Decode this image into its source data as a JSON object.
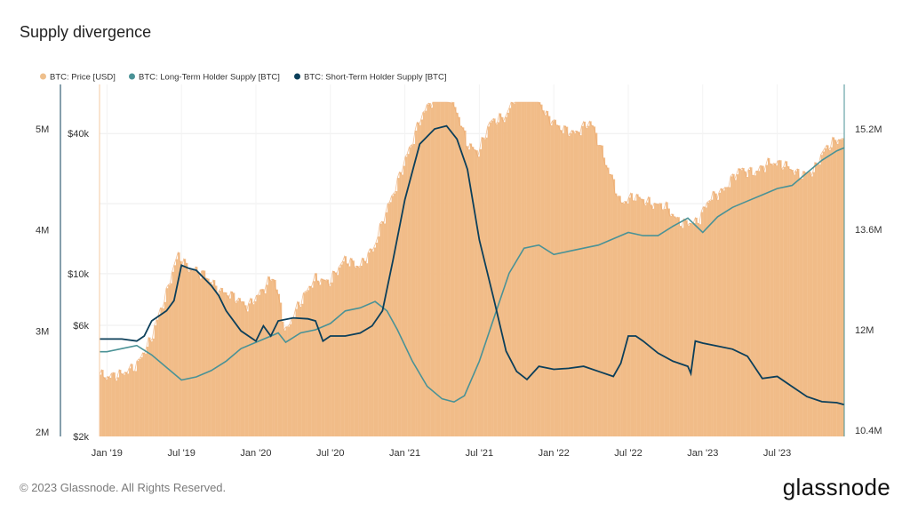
{
  "title": "Supply divergence",
  "footer": "© 2023 Glassnode. All Rights Reserved.",
  "logo": "glassnode",
  "colors": {
    "price": "#eba76c",
    "price_fill": "#f1bc88",
    "lth": "#4a9296",
    "sth": "#0c3f5a",
    "grid": "#eeeeee"
  },
  "chart_data": {
    "type": "line",
    "legend": [
      {
        "label": "BTC: Price [USD]",
        "color": "#eebf8c"
      },
      {
        "label": "BTC: Long-Term Holder Supply [BTC]",
        "color": "#4a9296"
      },
      {
        "label": "BTC: Short-Term Holder Supply [BTC]",
        "color": "#0c3f5a"
      }
    ],
    "x_ticks": [
      "Jan '19",
      "Jul '19",
      "Jan '20",
      "Jul '20",
      "Jan '21",
      "Jul '21",
      "Jan '22",
      "Jul '22",
      "Jan '23",
      "Jul '23"
    ],
    "x_tick_t": [
      2019.0,
      2019.5,
      2020.0,
      2020.5,
      2021.0,
      2021.5,
      2022.0,
      2022.5,
      2023.0,
      2023.5
    ],
    "x_range": [
      2018.95,
      2023.95
    ],
    "left_axis_sth": {
      "ticks": [
        "2M",
        "3M",
        "4M",
        "5M"
      ],
      "values": [
        2000000,
        3000000,
        4000000,
        5000000
      ],
      "range": [
        2000000,
        5300000
      ]
    },
    "left_axis_price": {
      "ticks": [
        "$2k",
        "$6k",
        "$10k",
        "$40k"
      ],
      "values": [
        2000,
        6000,
        10000,
        40000
      ],
      "scale": "log",
      "range": [
        2000,
        65000
      ]
    },
    "right_axis_lth": {
      "ticks": [
        "10.4M",
        "12M",
        "13.6M",
        "15.2M"
      ],
      "values": [
        10400000,
        12000000,
        13600000,
        15200000
      ],
      "range": [
        10400000,
        15300000
      ]
    },
    "series": [
      {
        "name": "BTC: Price [USD]",
        "axis": "price",
        "points": [
          [
            2018.95,
            3700
          ],
          [
            2019.0,
            3600
          ],
          [
            2019.1,
            3700
          ],
          [
            2019.2,
            4000
          ],
          [
            2019.3,
            5200
          ],
          [
            2019.4,
            8000
          ],
          [
            2019.48,
            12000
          ],
          [
            2019.55,
            10500
          ],
          [
            2019.65,
            10000
          ],
          [
            2019.75,
            8500
          ],
          [
            2019.85,
            8000
          ],
          [
            2019.95,
            7200
          ],
          [
            2020.05,
            8500
          ],
          [
            2020.12,
            9800
          ],
          [
            2020.2,
            5500
          ],
          [
            2020.3,
            7500
          ],
          [
            2020.4,
            9500
          ],
          [
            2020.5,
            9200
          ],
          [
            2020.6,
            11500
          ],
          [
            2020.7,
            10700
          ],
          [
            2020.8,
            13000
          ],
          [
            2020.88,
            18500
          ],
          [
            2020.95,
            24000
          ],
          [
            2021.05,
            36000
          ],
          [
            2021.12,
            48000
          ],
          [
            2021.2,
            57000
          ],
          [
            2021.28,
            60000
          ],
          [
            2021.35,
            50000
          ],
          [
            2021.42,
            36000
          ],
          [
            2021.5,
            33000
          ],
          [
            2021.58,
            45000
          ],
          [
            2021.68,
            47000
          ],
          [
            2021.75,
            58000
          ],
          [
            2021.85,
            64000
          ],
          [
            2021.95,
            48000
          ],
          [
            2022.05,
            42000
          ],
          [
            2022.15,
            40000
          ],
          [
            2022.25,
            45000
          ],
          [
            2022.35,
            30000
          ],
          [
            2022.45,
            20000
          ],
          [
            2022.55,
            21500
          ],
          [
            2022.65,
            20000
          ],
          [
            2022.75,
            19500
          ],
          [
            2022.85,
            16500
          ],
          [
            2022.97,
            16600
          ],
          [
            2023.05,
            21000
          ],
          [
            2023.15,
            23000
          ],
          [
            2023.25,
            28000
          ],
          [
            2023.35,
            27000
          ],
          [
            2023.45,
            30000
          ],
          [
            2023.55,
            29500
          ],
          [
            2023.65,
            26500
          ],
          [
            2023.75,
            27500
          ],
          [
            2023.82,
            34000
          ],
          [
            2023.9,
            37500
          ],
          [
            2023.95,
            38000
          ]
        ]
      },
      {
        "name": "BTC: Long-Term Holder Supply [BTC]",
        "axis": "lth",
        "points": [
          [
            2018.95,
            11650
          ],
          [
            2019.0,
            11650
          ],
          [
            2019.1,
            11700
          ],
          [
            2019.2,
            11750
          ],
          [
            2019.3,
            11600
          ],
          [
            2019.4,
            11400
          ],
          [
            2019.5,
            11200
          ],
          [
            2019.6,
            11250
          ],
          [
            2019.7,
            11350
          ],
          [
            2019.8,
            11500
          ],
          [
            2019.9,
            11700
          ],
          [
            2020.0,
            11800
          ],
          [
            2020.1,
            11900
          ],
          [
            2020.15,
            11950
          ],
          [
            2020.2,
            11800
          ],
          [
            2020.3,
            11950
          ],
          [
            2020.4,
            12000
          ],
          [
            2020.5,
            12100
          ],
          [
            2020.6,
            12300
          ],
          [
            2020.7,
            12350
          ],
          [
            2020.8,
            12450
          ],
          [
            2020.88,
            12300
          ],
          [
            2020.95,
            12000
          ],
          [
            2021.05,
            11500
          ],
          [
            2021.15,
            11100
          ],
          [
            2021.25,
            10900
          ],
          [
            2021.33,
            10850
          ],
          [
            2021.4,
            10950
          ],
          [
            2021.5,
            11500
          ],
          [
            2021.6,
            12200
          ],
          [
            2021.7,
            12900
          ],
          [
            2021.8,
            13300
          ],
          [
            2021.9,
            13350
          ],
          [
            2022.0,
            13200
          ],
          [
            2022.1,
            13250
          ],
          [
            2022.2,
            13300
          ],
          [
            2022.3,
            13350
          ],
          [
            2022.4,
            13450
          ],
          [
            2022.5,
            13550
          ],
          [
            2022.6,
            13500
          ],
          [
            2022.7,
            13500
          ],
          [
            2022.8,
            13650
          ],
          [
            2022.9,
            13780
          ],
          [
            2023.0,
            13550
          ],
          [
            2023.1,
            13800
          ],
          [
            2023.2,
            13950
          ],
          [
            2023.3,
            14050
          ],
          [
            2023.4,
            14150
          ],
          [
            2023.5,
            14250
          ],
          [
            2023.6,
            14300
          ],
          [
            2023.7,
            14500
          ],
          [
            2023.8,
            14700
          ],
          [
            2023.9,
            14850
          ],
          [
            2023.95,
            14900
          ]
        ]
      },
      {
        "name": "BTC: Short-Term Holder Supply [BTC]",
        "axis": "sth",
        "points": [
          [
            2018.95,
            2920
          ],
          [
            2019.0,
            2920
          ],
          [
            2019.1,
            2920
          ],
          [
            2019.2,
            2900
          ],
          [
            2019.25,
            2950
          ],
          [
            2019.3,
            3100
          ],
          [
            2019.4,
            3200
          ],
          [
            2019.45,
            3300
          ],
          [
            2019.5,
            3650
          ],
          [
            2019.55,
            3620
          ],
          [
            2019.6,
            3600
          ],
          [
            2019.7,
            3450
          ],
          [
            2019.75,
            3350
          ],
          [
            2019.8,
            3200
          ],
          [
            2019.9,
            3000
          ],
          [
            2020.0,
            2900
          ],
          [
            2020.05,
            3050
          ],
          [
            2020.1,
            2950
          ],
          [
            2020.15,
            3100
          ],
          [
            2020.25,
            3130
          ],
          [
            2020.35,
            3120
          ],
          [
            2020.4,
            3100
          ],
          [
            2020.45,
            2900
          ],
          [
            2020.5,
            2950
          ],
          [
            2020.6,
            2950
          ],
          [
            2020.7,
            2980
          ],
          [
            2020.78,
            3050
          ],
          [
            2020.85,
            3200
          ],
          [
            2020.92,
            3700
          ],
          [
            2021.0,
            4300
          ],
          [
            2021.1,
            4850
          ],
          [
            2021.2,
            5000
          ],
          [
            2021.28,
            5030
          ],
          [
            2021.35,
            4900
          ],
          [
            2021.42,
            4600
          ],
          [
            2021.5,
            3900
          ],
          [
            2021.6,
            3300
          ],
          [
            2021.68,
            2800
          ],
          [
            2021.75,
            2600
          ],
          [
            2021.82,
            2520
          ],
          [
            2021.9,
            2650
          ],
          [
            2022.0,
            2620
          ],
          [
            2022.1,
            2630
          ],
          [
            2022.2,
            2650
          ],
          [
            2022.3,
            2600
          ],
          [
            2022.4,
            2550
          ],
          [
            2022.45,
            2680
          ],
          [
            2022.5,
            2950
          ],
          [
            2022.55,
            2950
          ],
          [
            2022.6,
            2900
          ],
          [
            2022.7,
            2780
          ],
          [
            2022.8,
            2700
          ],
          [
            2022.9,
            2650
          ],
          [
            2022.92,
            2580
          ],
          [
            2022.95,
            2900
          ],
          [
            2023.0,
            2880
          ],
          [
            2023.1,
            2850
          ],
          [
            2023.2,
            2820
          ],
          [
            2023.3,
            2750
          ],
          [
            2023.4,
            2530
          ],
          [
            2023.5,
            2550
          ],
          [
            2023.6,
            2450
          ],
          [
            2023.7,
            2350
          ],
          [
            2023.8,
            2300
          ],
          [
            2023.9,
            2290
          ],
          [
            2023.95,
            2270
          ]
        ]
      }
    ]
  }
}
